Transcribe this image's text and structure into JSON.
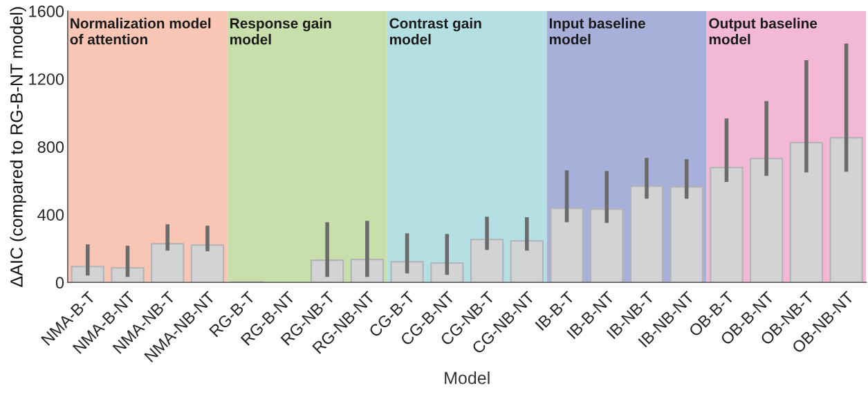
{
  "chart_data": {
    "type": "bar",
    "xlabel": "Model",
    "ylabel": "ΔAIC (compared to RG-B-NT model)",
    "categories": [
      "NMA-B-T",
      "NMA-B-NT",
      "NMA-NB-T",
      "NMA-NB-NT",
      "RG-B-T",
      "RG-B-NT",
      "RG-NB-T",
      "RG-NB-NT",
      "CG-B-T",
      "CG-B-NT",
      "CG-NB-T",
      "CG-NB-NT",
      "IB-B-T",
      "IB-B-NT",
      "IB-NB-T",
      "IB-NB-NT",
      "OB-B-T",
      "OB-B-NT",
      "OB-NB-T",
      "OB-NB-NT"
    ],
    "values": [
      94,
      86,
      228,
      220,
      3,
      null,
      131,
      135,
      122,
      114,
      253,
      245,
      437,
      432,
      567,
      563,
      677,
      730,
      824,
      853
    ],
    "errors": [
      [
        41,
        224
      ],
      [
        33,
        216
      ],
      [
        188,
        343
      ],
      [
        184,
        335
      ],
      null,
      null,
      [
        33,
        355
      ],
      [
        33,
        363
      ],
      [
        53,
        290
      ],
      [
        45,
        286
      ],
      [
        192,
        388
      ],
      [
        188,
        384
      ],
      [
        355,
        661
      ],
      [
        351,
        657
      ],
      [
        494,
        734
      ],
      [
        494,
        726
      ],
      [
        592,
        967
      ],
      [
        628,
        1069
      ],
      [
        649,
        1310
      ],
      [
        653,
        1408
      ]
    ],
    "color": "#d2d3d5",
    "ylim": [
      0,
      1600
    ],
    "yticks": [
      0,
      400,
      800,
      1200,
      1600
    ],
    "grid": false,
    "bands": [
      {
        "axis": "x",
        "from": "NMA-B-T",
        "to": "NMA-NB-NT",
        "label": "Normalization model\nof attention",
        "color": "#f9c5b5"
      },
      {
        "axis": "x",
        "from": "RG-B-T",
        "to": "RG-NB-NT",
        "label": "Response gain\nmodel",
        "color": "#c8deab"
      },
      {
        "axis": "x",
        "from": "CG-B-T",
        "to": "CG-NB-NT",
        "label": "Contrast gain\nmodel",
        "color": "#b4e0e3"
      },
      {
        "axis": "x",
        "from": "IB-B-T",
        "to": "IB-NB-NT",
        "label": "Input baseline\nmodel",
        "color": "#a8b0da"
      },
      {
        "axis": "x",
        "from": "OB-B-T",
        "to": "OB-NB-NT",
        "label": "Output baseline\nmodel",
        "color": "#f2b8d5"
      }
    ]
  }
}
